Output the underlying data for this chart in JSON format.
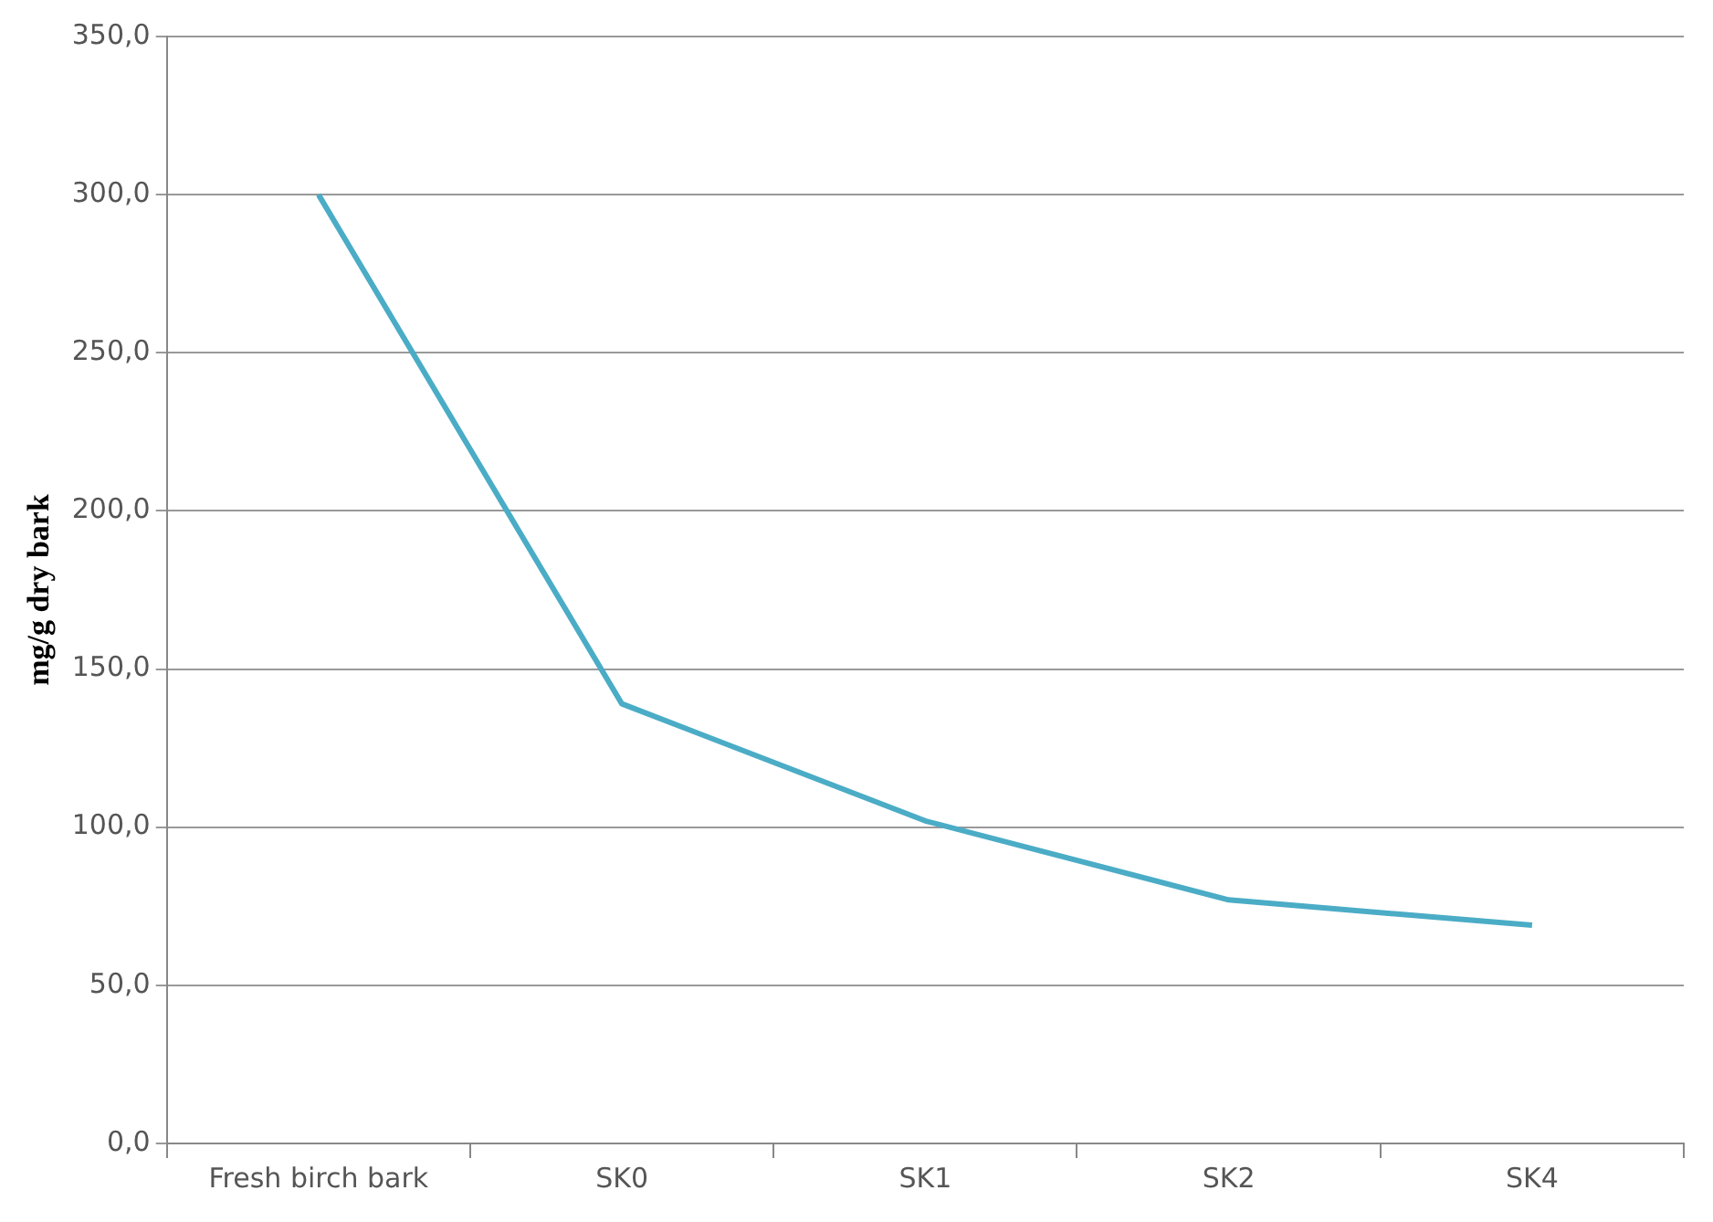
{
  "chart_data": {
    "type": "line",
    "ylabel": "mg/g dry bark",
    "categories": [
      "Fresh birch bark",
      "SK0",
      "SK1",
      "SK2",
      "SK4"
    ],
    "series": [
      {
        "color": "#4bacc6",
        "values": [
          300,
          139,
          102,
          77,
          69
        ]
      }
    ],
    "ylim": [
      0,
      350
    ],
    "yticks": [
      {
        "value": 0,
        "label": "0,0"
      },
      {
        "value": 50,
        "label": "50,0"
      },
      {
        "value": 100,
        "label": "100,0"
      },
      {
        "value": 150,
        "label": "150,0"
      },
      {
        "value": 200,
        "label": "200,0"
      },
      {
        "value": 250,
        "label": "250,0"
      },
      {
        "value": 300,
        "label": "300,0"
      },
      {
        "value": 350,
        "label": "350,0"
      }
    ],
    "grid": "y",
    "legend": false,
    "marker": "none",
    "line_style": "solid"
  }
}
